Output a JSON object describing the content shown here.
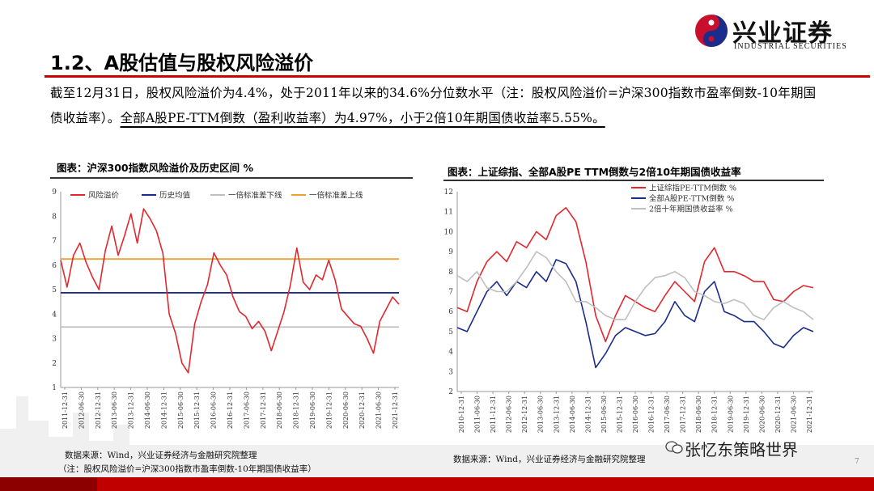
{
  "header": {
    "logo_name": "兴业证券",
    "logo_en": "INDUSTRIAL SECURITIES"
  },
  "page": {
    "title": "1.2、A股估值与股权风险溢价",
    "para_part1": "截至12月31日，股权风险溢价为4.4%，处于2011年以来的34.6%分位数水平（注：股权风险溢价=沪深300指数市盈率倒数-10年期国债收益率）。",
    "para_part2": "全部A股PE-TTM倒数（盈利收益率）为4.97%，小于2倍10年期国债收益率5.55%。",
    "page_number": "7",
    "watermark": "张忆东策略世界"
  },
  "left": {
    "caption": "图表：沪深300指数风险溢价及历史区间 %",
    "source_line1": "数据来源：Wind，兴业证券经济与金融研究院整理",
    "source_line2": "（注：股权风险溢价=沪深300指数市盈率倒数-10年期国债收益率）"
  },
  "right": {
    "caption": "图表：上证综指、全部A股PE TTM倒数与2倍10年期国债收益率",
    "source": "数据来源：Wind，兴业证券经济与金融研究院整理"
  },
  "chart_data": [
    {
      "type": "line",
      "title": "图表：沪深300指数风险溢价及历史区间 %",
      "x_ticks": [
        "2011-12-31",
        "2012-06-30",
        "2012-12-31",
        "2013-06-30",
        "2013-12-31",
        "2014-06-30",
        "2014-12-31",
        "2015-06-30",
        "2015-12-31",
        "2016-06-30",
        "2016-12-31",
        "2017-06-30",
        "2017-12-31",
        "2018-06-30",
        "2018-12-31",
        "2019-06-30",
        "2019-12-31",
        "2020-06-30",
        "2020-12-31",
        "2021-06-30",
        "2021-12-31"
      ],
      "ylim": [
        1,
        9
      ],
      "y_ticks": [
        1,
        2,
        3,
        4,
        5,
        6,
        7,
        8,
        9
      ],
      "legend_position": "top",
      "colors": {
        "risk_premium": "#e0282e",
        "mean": "#1a2c8c",
        "lower": "#bfbfbf",
        "upper": "#f0a030"
      },
      "series": [
        {
          "name": "风险溢价",
          "values": [
            6.2,
            5.1,
            6.4,
            6.9,
            6.1,
            5.5,
            5.0,
            6.6,
            7.6,
            6.4,
            7.2,
            8.1,
            6.9,
            8.3,
            7.9,
            7.4,
            6.5,
            4.0,
            3.2,
            2.0,
            1.6,
            3.6,
            4.5,
            5.2,
            6.5,
            6.0,
            5.6,
            4.7,
            4.1,
            3.9,
            3.4,
            3.7,
            3.3,
            2.5,
            3.3,
            4.1,
            5.2,
            6.7,
            5.3,
            5.0,
            5.6,
            5.4,
            6.2,
            5.4,
            4.2,
            3.9,
            3.6,
            3.5,
            3.0,
            2.4,
            3.7,
            4.2,
            4.7,
            4.4
          ]
        },
        {
          "name": "历史均值",
          "values": [
            4.87
          ]
        },
        {
          "name": "一倍标准差下线",
          "values": [
            3.47
          ]
        },
        {
          "name": "一倍标准差上线",
          "values": [
            6.25
          ]
        }
      ]
    },
    {
      "type": "line",
      "title": "图表：上证综指、全部A股PE TTM倒数与2倍10年期国债收益率",
      "x_ticks": [
        "2010-12-31",
        "2011-06-30",
        "2011-12-31",
        "2012-06-30",
        "2012-12-31",
        "2013-06-30",
        "2013-12-31",
        "2014-06-30",
        "2014-12-31",
        "2015-06-30",
        "2015-12-31",
        "2016-06-30",
        "2016-12-31",
        "2017-06-30",
        "2017-12-31",
        "2018-06-30",
        "2018-12-31",
        "2019-06-30",
        "2019-12-31",
        "2020-06-30",
        "2020-12-31",
        "2021-06-30",
        "2021-12-31"
      ],
      "ylim": [
        2,
        12
      ],
      "y_ticks": [
        2,
        3,
        4,
        5,
        6,
        7,
        8,
        9,
        10,
        11,
        12
      ],
      "legend_position": "top-right",
      "colors": {
        "sse": "#e0282e",
        "all_a": "#1a2c8c",
        "bond": "#bfbfbf"
      },
      "series": [
        {
          "name": "上证综指PE-TTM倒数 %",
          "values": [
            6.2,
            6.0,
            7.5,
            8.5,
            9.0,
            8.5,
            9.5,
            9.2,
            10.0,
            9.6,
            10.8,
            11.2,
            10.5,
            8.5,
            5.8,
            4.5,
            5.8,
            6.8,
            6.5,
            6.2,
            6.0,
            6.8,
            7.5,
            7.0,
            6.5,
            8.5,
            9.2,
            8.0,
            8.0,
            7.8,
            7.5,
            7.5,
            6.6,
            6.5,
            7.0,
            7.3,
            7.2
          ]
        },
        {
          "name": "全部A股PE-TTM倒数 %",
          "values": [
            5.2,
            5.0,
            6.0,
            7.0,
            7.5,
            6.8,
            7.5,
            7.2,
            8.0,
            7.5,
            8.6,
            8.4,
            7.5,
            5.5,
            3.2,
            3.9,
            4.8,
            5.2,
            5.0,
            4.8,
            4.9,
            5.5,
            6.5,
            5.8,
            5.5,
            7.0,
            7.5,
            6.0,
            5.8,
            5.5,
            5.5,
            5.0,
            4.4,
            4.2,
            4.8,
            5.2,
            5.0
          ]
        },
        {
          "name": "2倍十年期国债收益率 %",
          "values": [
            7.8,
            7.5,
            8.0,
            7.2,
            7.0,
            7.0,
            7.5,
            8.2,
            9.0,
            8.7,
            8.0,
            7.5,
            6.5,
            6.5,
            6.2,
            5.8,
            5.6,
            5.6,
            6.5,
            7.2,
            7.7,
            7.8,
            8.0,
            7.7,
            7.0,
            6.8,
            6.5,
            6.4,
            6.6,
            6.4,
            5.8,
            5.6,
            6.2,
            6.5,
            6.2,
            6.0,
            5.6
          ]
        }
      ]
    }
  ]
}
